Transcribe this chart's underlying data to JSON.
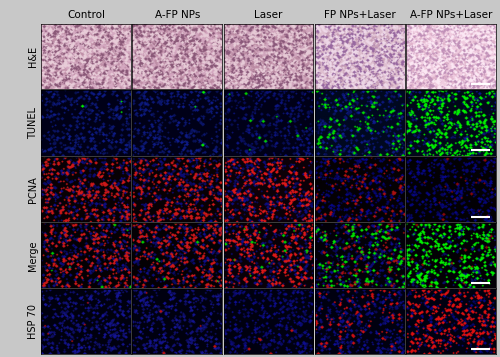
{
  "col_labels": [
    "Control",
    "A-FP NPs",
    "Laser",
    "FP NPs+Laser",
    "A-FP NPs+Laser"
  ],
  "row_labels": [
    "H&E",
    "TUNEL",
    "PCNA",
    "Merge",
    "HSP 70"
  ],
  "n_cols": 5,
  "n_rows": 5,
  "fig_width": 5.0,
  "fig_height": 3.57,
  "outer_bg": "#c8c8c8",
  "cell_border_color": "#000000",
  "col_label_fontsize": 7.5,
  "row_label_fontsize": 7.0,
  "scale_bar_color": "#ffffff",
  "he_colors": {
    "0": {
      "bg": "#d4a8c0",
      "dark": "#8a5878",
      "light": "#e8ccd8",
      "mid": "#c090a8"
    },
    "1": {
      "bg": "#d2a5be",
      "dark": "#8a5878",
      "light": "#e6cad6",
      "mid": "#be8ea6"
    },
    "2": {
      "bg": "#d0a5bc",
      "dark": "#8a587a",
      "light": "#e6cad6",
      "mid": "#bc8ca4"
    },
    "3": {
      "bg": "#dfc0d0",
      "dark": "#9868a0",
      "light": "#eed8e8",
      "mid": "#c8a0b8"
    },
    "4": {
      "bg": "#f0cce0",
      "dark": "#c090b8",
      "light": "#fce8f4",
      "mid": "#e0b4cc"
    }
  },
  "tunel_colors": {
    "0": {
      "bg": "#000018",
      "dot": "#00ee00",
      "blue": "#1020a0",
      "n_blue": 400,
      "n_dot": 3
    },
    "1": {
      "bg": "#000018",
      "dot": "#00ee00",
      "blue": "#1020a0",
      "n_blue": 400,
      "n_dot": 3
    },
    "2": {
      "bg": "#000018",
      "dot": "#00cc00",
      "blue": "#0e1898",
      "n_blue": 380,
      "n_dot": 12
    },
    "3": {
      "bg": "#000820",
      "dot": "#00dd00",
      "blue": "#1020a8",
      "n_blue": 350,
      "n_dot": 120
    },
    "4": {
      "bg": "#000818",
      "dot": "#00ee00",
      "blue": "#0e18a0",
      "n_blue": 200,
      "n_dot": 380
    }
  },
  "pcna_colors": {
    "0": {
      "bg": "#080004",
      "dot": "#cc1818",
      "blue": "#1010a0",
      "n_blue": 350,
      "n_dot": 280
    },
    "1": {
      "bg": "#080004",
      "dot": "#cc1818",
      "blue": "#1010a0",
      "n_blue": 350,
      "n_dot": 280
    },
    "2": {
      "bg": "#0c0008",
      "dot": "#dd1818",
      "blue": "#1010a0",
      "n_blue": 330,
      "n_dot": 300
    },
    "3": {
      "bg": "#040004",
      "dot": "#aa1010",
      "blue": "#0808a0",
      "n_blue": 380,
      "n_dot": 120
    },
    "4": {
      "bg": "#020004",
      "dot": "#880808",
      "blue": "#0808a0",
      "n_blue": 400,
      "n_dot": 20
    }
  },
  "merge_colors": {
    "0": {
      "bg": "#040004",
      "green": "#00cc00",
      "red": "#cc1818",
      "blue": "#1010a0",
      "n_blue": 350,
      "n_red": 250,
      "n_green": 8
    },
    "1": {
      "bg": "#040004",
      "green": "#00cc00",
      "red": "#cc1818",
      "blue": "#1010a0",
      "n_blue": 350,
      "n_red": 250,
      "n_green": 8
    },
    "2": {
      "bg": "#080008",
      "green": "#00cc00",
      "red": "#dd1818",
      "blue": "#1010a0",
      "n_blue": 320,
      "n_red": 280,
      "n_green": 20
    },
    "3": {
      "bg": "#020008",
      "green": "#00dd00",
      "red": "#aa1010",
      "blue": "#1010a8",
      "n_blue": 300,
      "n_red": 100,
      "n_green": 140
    },
    "4": {
      "bg": "#020004",
      "green": "#00ee00",
      "red": "#880808",
      "blue": "#0c18a0",
      "n_blue": 150,
      "n_red": 20,
      "n_green": 350
    }
  },
  "hsp70_colors": {
    "0": {
      "bg": "#000010",
      "dot": "#bb1010",
      "blue": "#1818b0",
      "n_blue": 420,
      "n_dot": 5
    },
    "1": {
      "bg": "#000010",
      "dot": "#bb1010",
      "blue": "#1818b0",
      "n_blue": 420,
      "n_dot": 5
    },
    "2": {
      "bg": "#000010",
      "dot": "#bb1010",
      "blue": "#1010a8",
      "n_blue": 420,
      "n_dot": 5
    },
    "3": {
      "bg": "#000010",
      "dot": "#cc1010",
      "blue": "#1010a8",
      "n_blue": 380,
      "n_dot": 100
    },
    "4": {
      "bg": "#000010",
      "dot": "#dd1010",
      "blue": "#0808a0",
      "n_blue": 200,
      "n_dot": 320
    }
  }
}
